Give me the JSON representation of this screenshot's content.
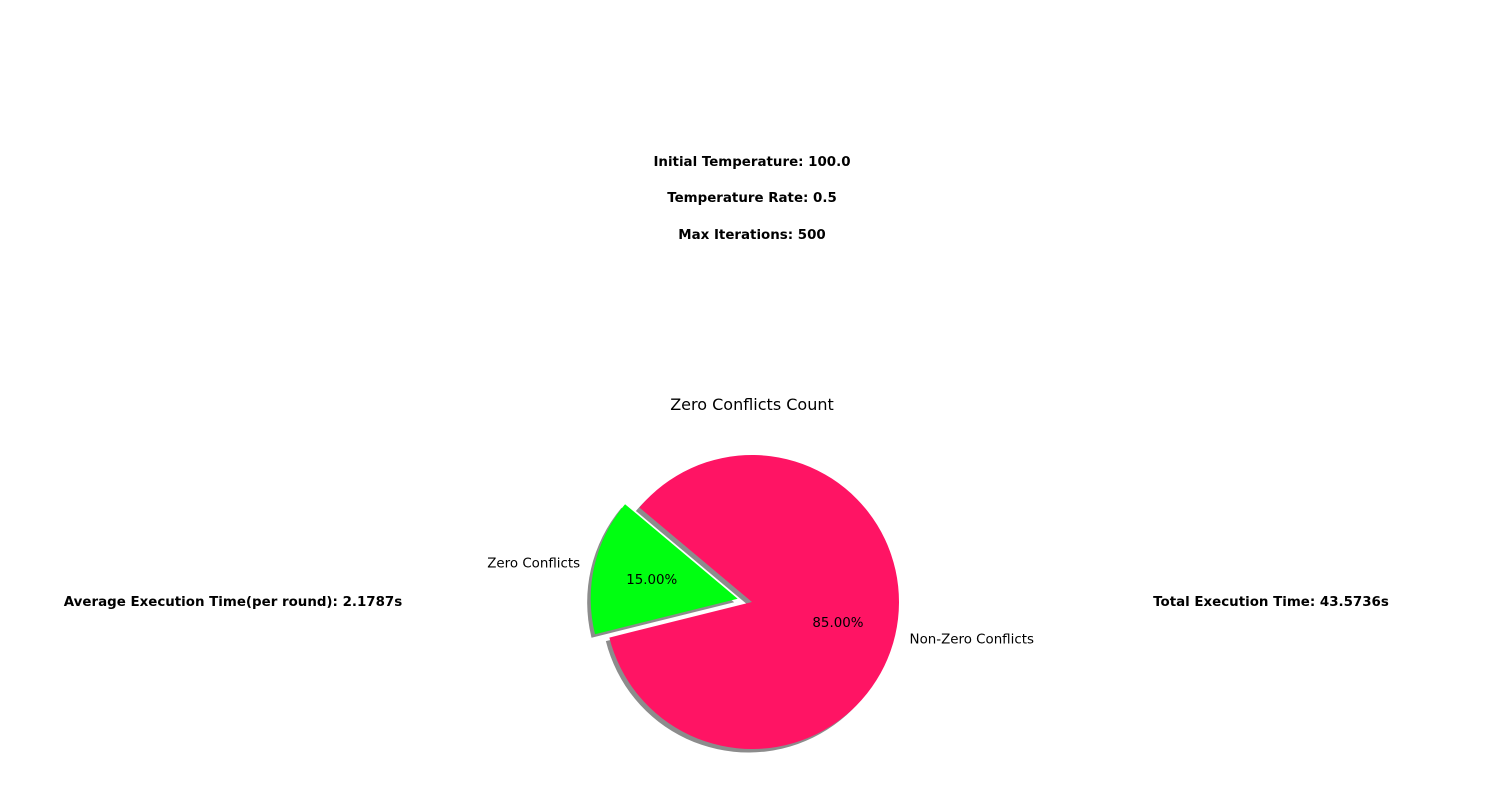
{
  "params": {
    "initial_temperature": "Initial Temperature: 100.0",
    "temperature_rate": "Temperature Rate: 0.5",
    "max_iterations": "Max Iterations: 500"
  },
  "stats": {
    "average_execution_time": "Average Execution Time(per round): 2.1787s",
    "total_execution_time": "Total Execution Time: 43.5736s"
  },
  "chart_data": {
    "type": "pie",
    "title": "Zero Conflicts Count",
    "slices": [
      {
        "label": "Zero Conflicts",
        "value": 15.0,
        "pct_label": "15.00%",
        "color": "#00ff11",
        "exploded": true
      },
      {
        "label": "Non-Zero Conflicts",
        "value": 85.0,
        "pct_label": "85.00%",
        "color": "#ff1464",
        "exploded": false
      }
    ],
    "start_angle_deg": 140,
    "shadow": true,
    "legend": false
  }
}
